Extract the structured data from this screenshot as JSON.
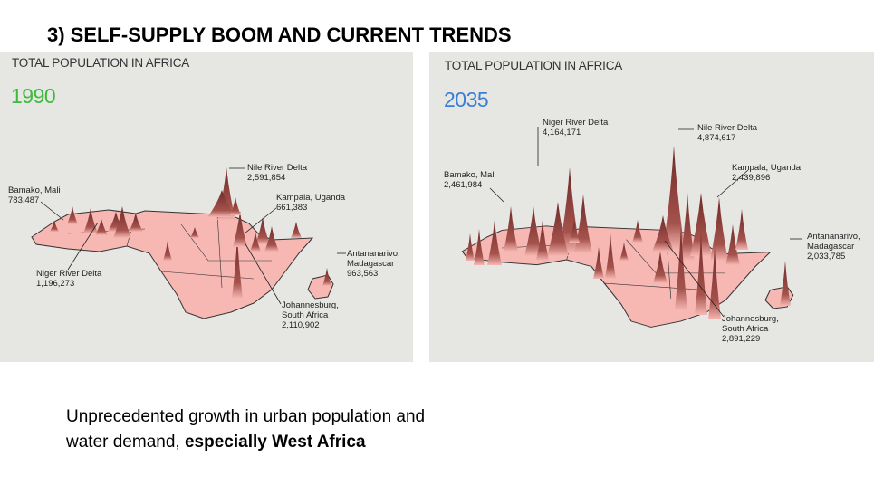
{
  "slide": {
    "title": "3) SELF-SUPPLY BOOM AND CURRENT TRENDS",
    "caption_line1": "Unprecedented growth in urban population and",
    "caption_line2": "water demand, ",
    "caption_bold": "especially West Africa"
  },
  "maps": [
    {
      "title": "TOTAL POPULATION IN AFRICA",
      "year": "1990",
      "year_color": "#3dbb3d",
      "labels": {
        "nile": {
          "name": "Nile River Delta",
          "value": "2,591,854"
        },
        "bamako": {
          "name": "Bamako, Mali",
          "value": "783,487"
        },
        "kampala": {
          "name": "Kampala, Uganda",
          "value": "661,383"
        },
        "niger": {
          "name": "Niger River Delta",
          "value": "1,196,273"
        },
        "antananarivo": {
          "name": "Antananarivo,",
          "name2": "Madagascar",
          "value": "963,563"
        },
        "johannesburg": {
          "name": "Johannesburg,",
          "name2": "South Africa",
          "value": "2,110,902"
        }
      }
    },
    {
      "title": "TOTAL POPULATION IN AFRICA",
      "year": "2035",
      "year_color": "#3a7fd5",
      "labels": {
        "niger": {
          "name": "Niger River Delta",
          "value": "4,164,171"
        },
        "nile": {
          "name": "Nile River Delta",
          "value": "4,874,617"
        },
        "bamako": {
          "name": "Bamako, Mali",
          "value": "2,461,984"
        },
        "kampala": {
          "name": "Kampala, Uganda",
          "value": "2,439,896"
        },
        "antananarivo": {
          "name": "Antananarivo,",
          "name2": "Madagascar",
          "value": "2,033,785"
        },
        "johannesburg": {
          "name": "Johannesburg,",
          "name2": "South Africa",
          "value": "2,891,229"
        }
      }
    }
  ],
  "colors": {
    "land": "#f7b7b2",
    "peak": "#6e2a28",
    "border": "#333333"
  }
}
